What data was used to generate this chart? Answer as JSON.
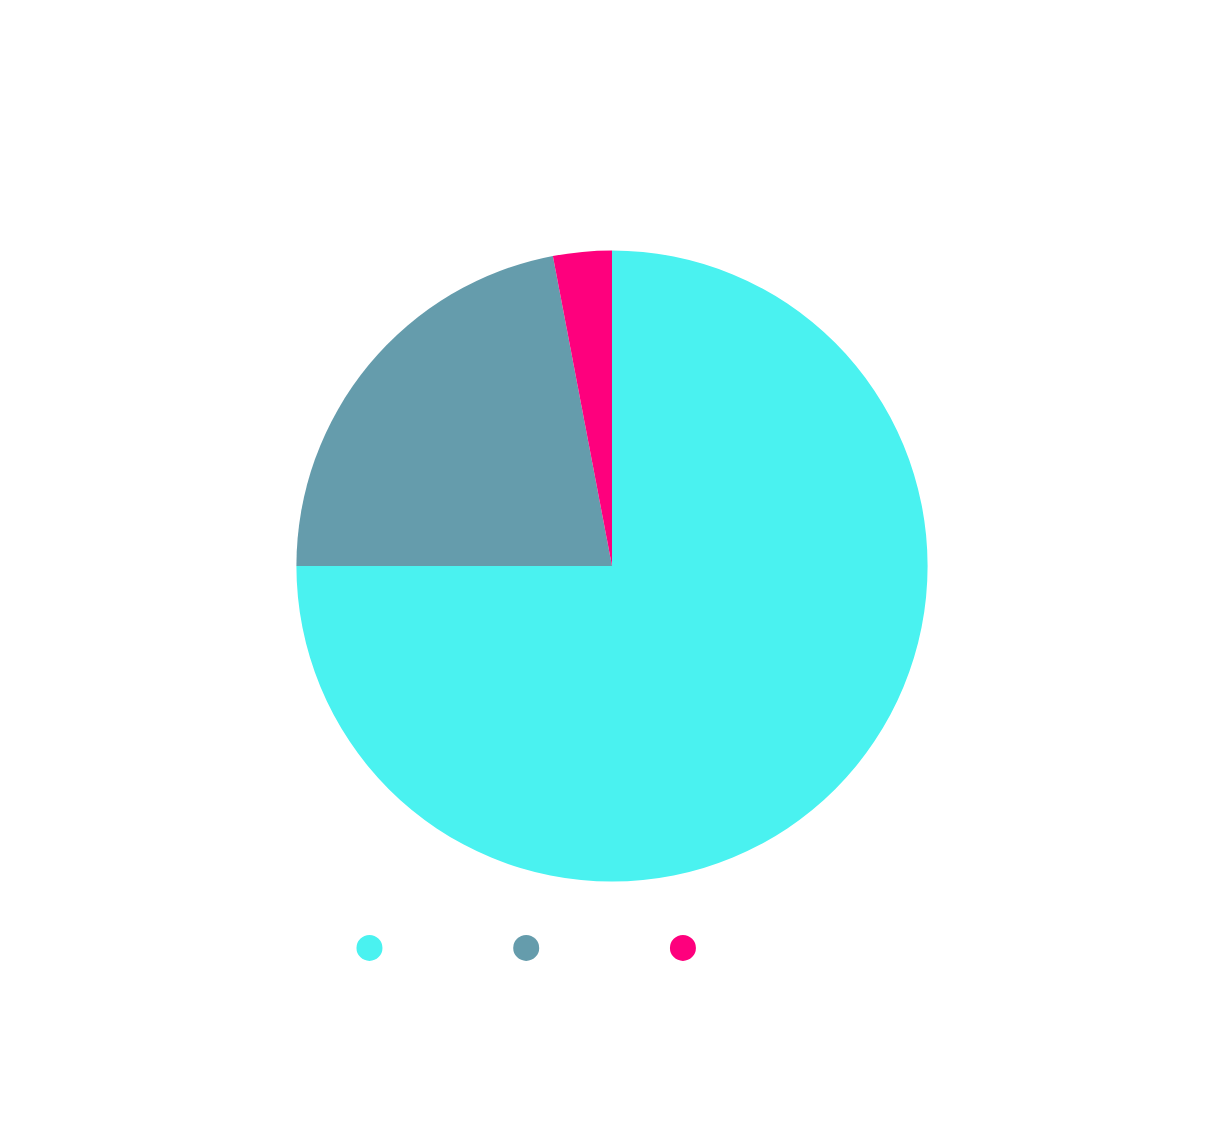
{
  "chart_data": {
    "type": "pie",
    "categories": [
      null,
      null,
      null
    ],
    "values": [
      75,
      22,
      3
    ],
    "colors": [
      "#4af2f0",
      "#659cac",
      "#fe007d"
    ]
  }
}
